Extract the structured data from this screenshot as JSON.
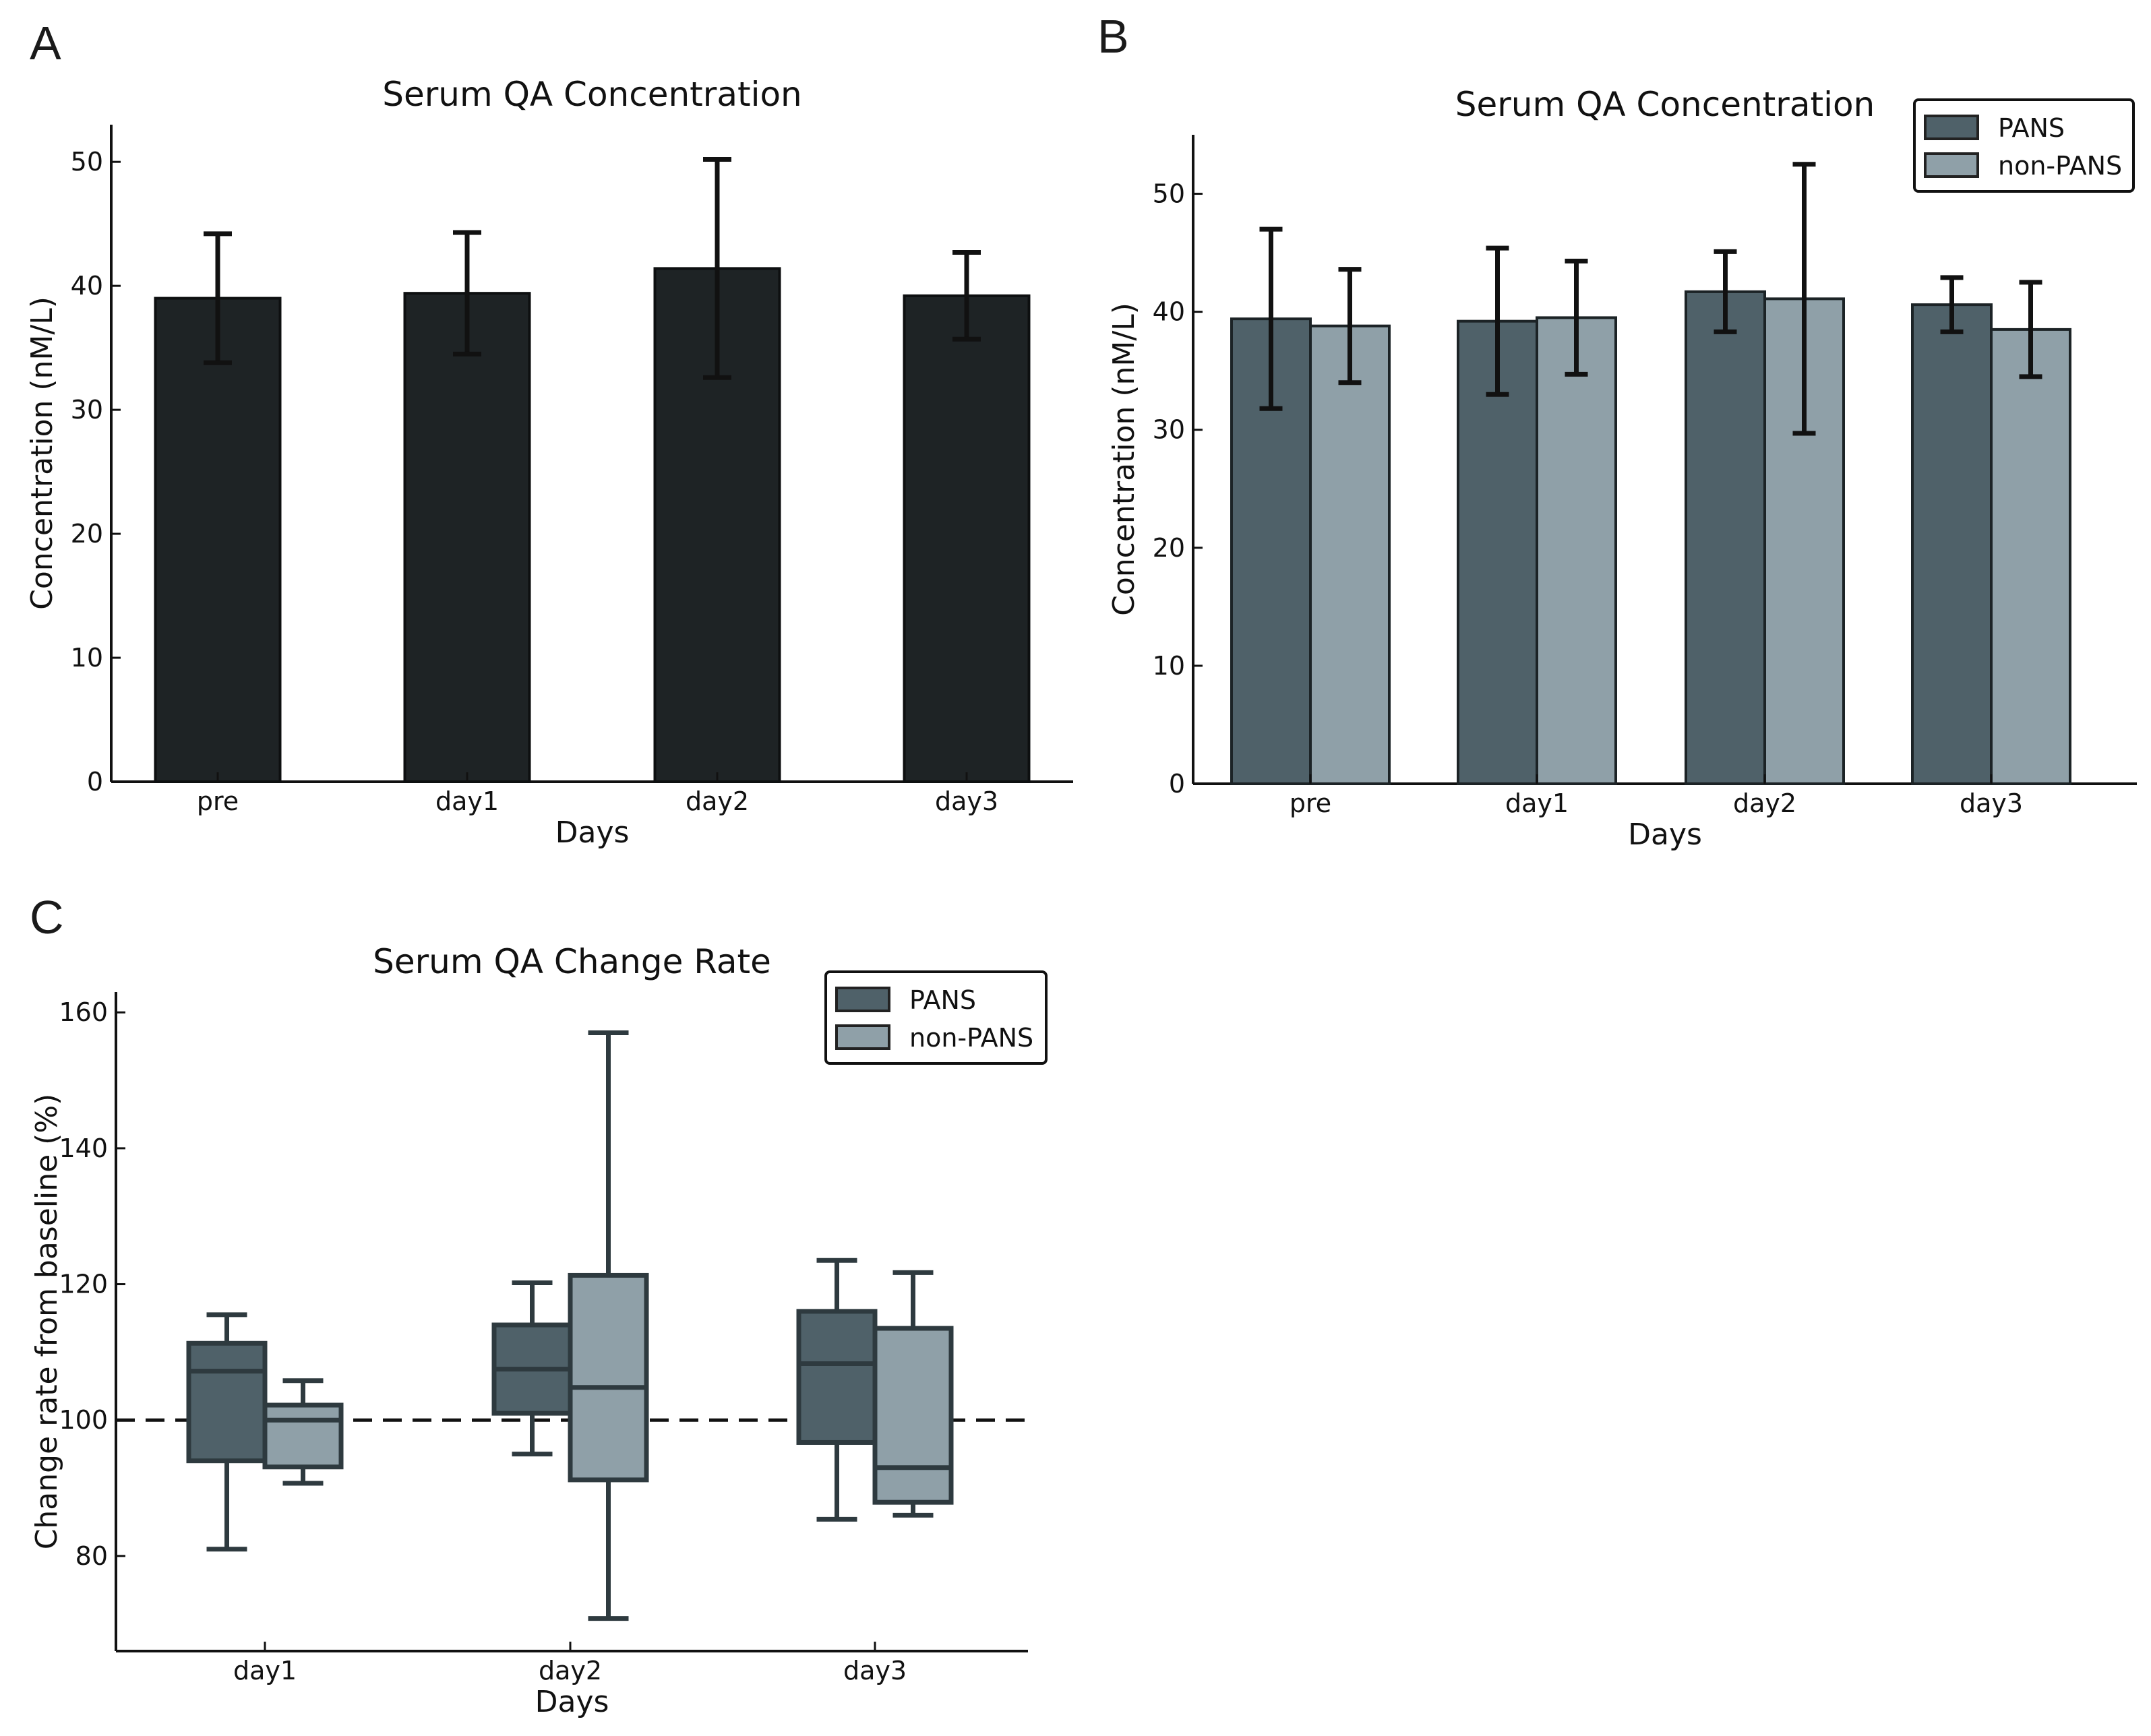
{
  "chart_data": [
    {
      "panel": "A",
      "type": "bar",
      "title": "Serum QA Concentration",
      "xlabel": "Days",
      "ylabel": "Concentration (nM/L)",
      "categories": [
        "pre",
        "day1",
        "day2",
        "day3"
      ],
      "values": [
        39.0,
        39.4,
        41.4,
        39.2
      ],
      "error": [
        5.2,
        4.9,
        8.8,
        3.5
      ],
      "ylim": [
        0,
        53
      ],
      "yticks": [
        0,
        10,
        20,
        30,
        40,
        50
      ],
      "color": "#1e2325"
    },
    {
      "panel": "B",
      "type": "bar",
      "title": "Serum QA Concentration",
      "xlabel": "Days",
      "ylabel": "Concentration (nM/L)",
      "categories": [
        "pre",
        "day1",
        "day2",
        "day3"
      ],
      "series": [
        {
          "name": "PANS",
          "color": "#4f6169",
          "values": [
            39.4,
            39.2,
            41.7,
            40.6
          ],
          "error": [
            7.6,
            6.2,
            3.4,
            2.3
          ]
        },
        {
          "name": "non-PANS",
          "color": "#8fa0a8",
          "values": [
            38.8,
            39.5,
            41.1,
            38.5
          ],
          "error": [
            4.8,
            4.8,
            11.4,
            4.0
          ]
        }
      ],
      "ylim": [
        0,
        55
      ],
      "yticks": [
        0,
        10,
        20,
        30,
        40,
        50
      ],
      "legend": "top-right"
    },
    {
      "panel": "C",
      "type": "box",
      "title": "Serum QA Change Rate",
      "xlabel": "Days",
      "ylabel": "Change rate from baseline (%)",
      "categories": [
        "day1",
        "day2",
        "day3"
      ],
      "series": [
        {
          "name": "PANS",
          "color": "#4f6169",
          "boxes": [
            {
              "min": 81,
              "q1": 94,
              "median": 107.2,
              "q3": 111.3,
              "max": 115.5
            },
            {
              "min": 95,
              "q1": 101,
              "median": 107.5,
              "q3": 114,
              "max": 120.2
            },
            {
              "min": 85.4,
              "q1": 96.7,
              "median": 108.3,
              "q3": 116,
              "max": 123.5
            }
          ]
        },
        {
          "name": "non-PANS",
          "color": "#8fa0a8",
          "boxes": [
            {
              "min": 90.7,
              "q1": 93.1,
              "median": 100,
              "q3": 102.2,
              "max": 105.8
            },
            {
              "min": 70.8,
              "q1": 91.2,
              "median": 104.8,
              "q3": 121.3,
              "max": 157
            },
            {
              "min": 86,
              "q1": 87.9,
              "median": 93,
              "q3": 113.5,
              "max": 121.7
            }
          ]
        }
      ],
      "reference_line": 100,
      "ylim": [
        66,
        163
      ],
      "yticks": [
        80,
        100,
        120,
        140,
        160
      ],
      "legend": "top-right"
    }
  ],
  "panel_letters": [
    "A",
    "B",
    "C"
  ]
}
